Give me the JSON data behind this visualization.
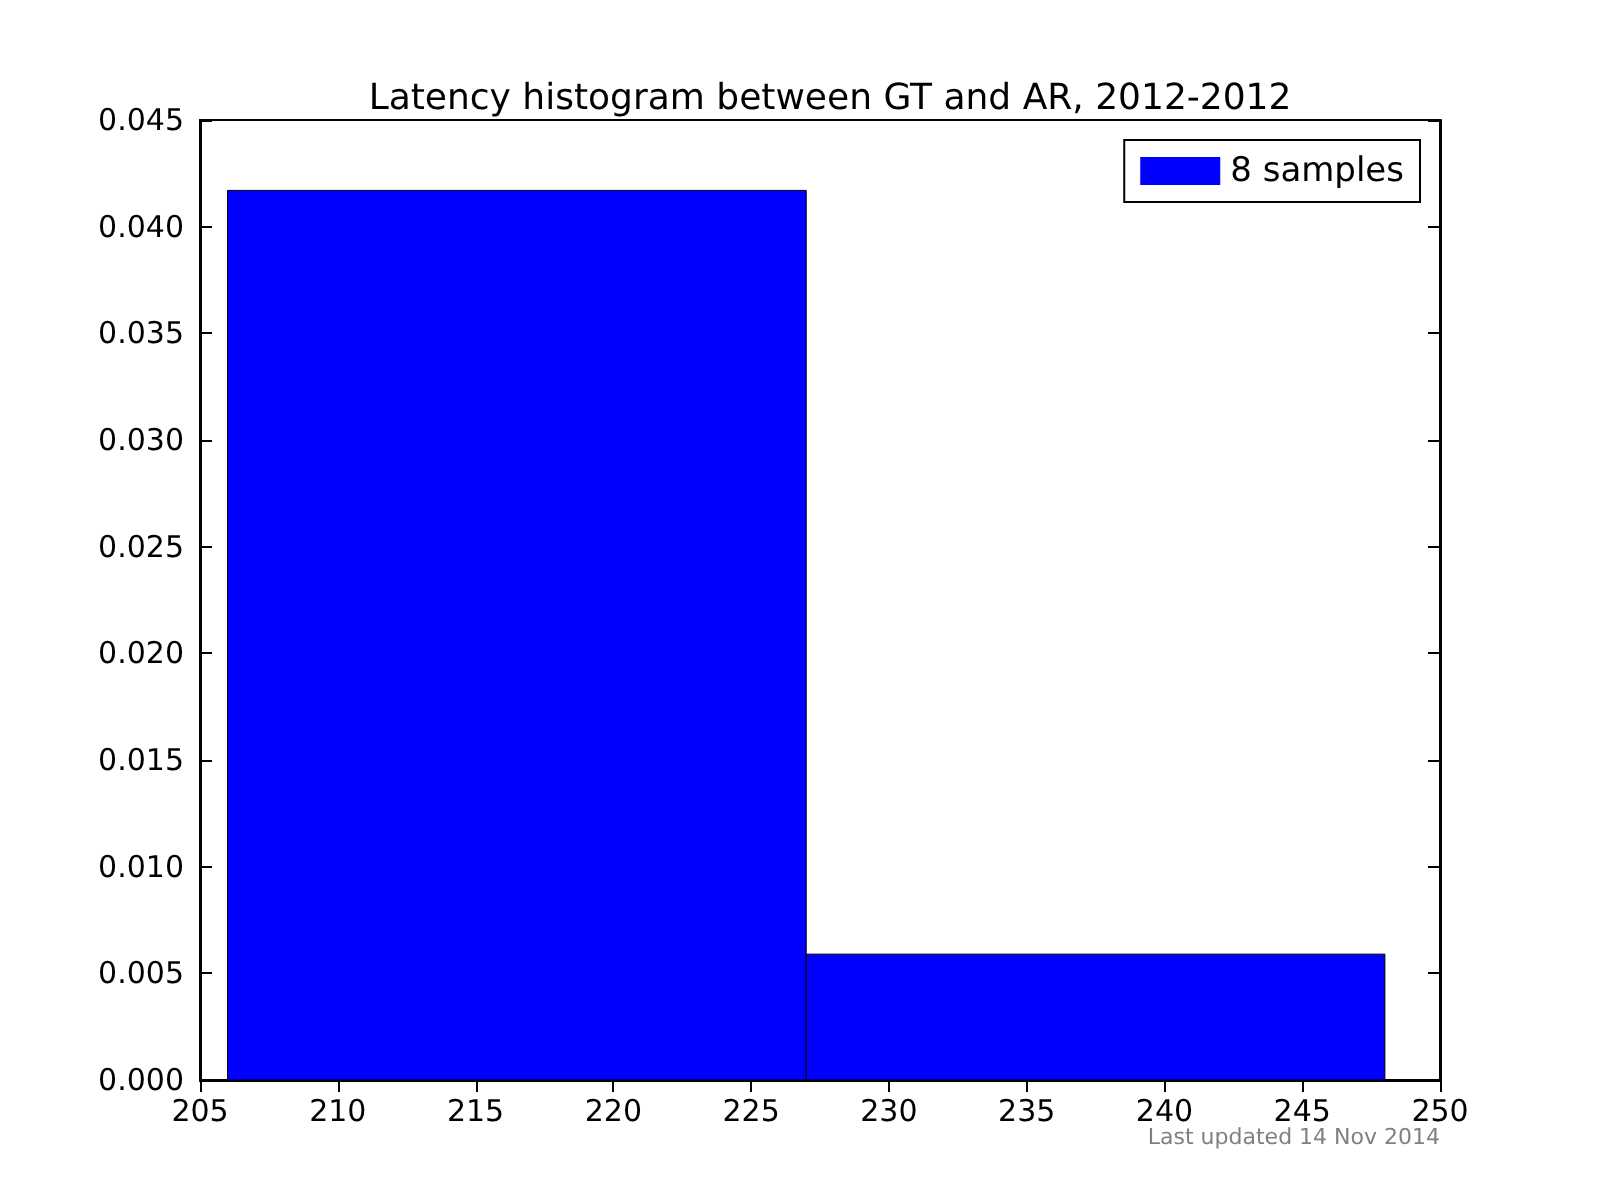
{
  "chart_data": {
    "type": "histogram",
    "title": "Latency histogram between GT and AR, 2012-2012",
    "bins": [
      206,
      227,
      248
    ],
    "series": [
      {
        "name": "8 samples",
        "color": "#0000ff",
        "values": [
          0.0417,
          0.0059
        ]
      }
    ],
    "xlim": [
      205,
      250
    ],
    "xticks": [
      205,
      210,
      215,
      220,
      225,
      230,
      235,
      240,
      245,
      250
    ],
    "ylim": [
      0,
      0.045
    ],
    "yticks": [
      {
        "value": 0,
        "label": "0.000"
      },
      {
        "value": 0.005,
        "label": "0.005"
      },
      {
        "value": 0.01,
        "label": "0.010"
      },
      {
        "value": 0.015,
        "label": "0.015"
      },
      {
        "value": 0.02,
        "label": "0.020"
      },
      {
        "value": 0.025,
        "label": "0.025"
      },
      {
        "value": 0.03,
        "label": "0.030"
      },
      {
        "value": 0.035,
        "label": "0.035"
      },
      {
        "value": 0.04,
        "label": "0.040"
      },
      {
        "value": 0.045,
        "label": "0.045"
      }
    ],
    "annotations": [
      "Last updated 14 Nov 2014"
    ],
    "legend": "top right",
    "grid": false
  }
}
